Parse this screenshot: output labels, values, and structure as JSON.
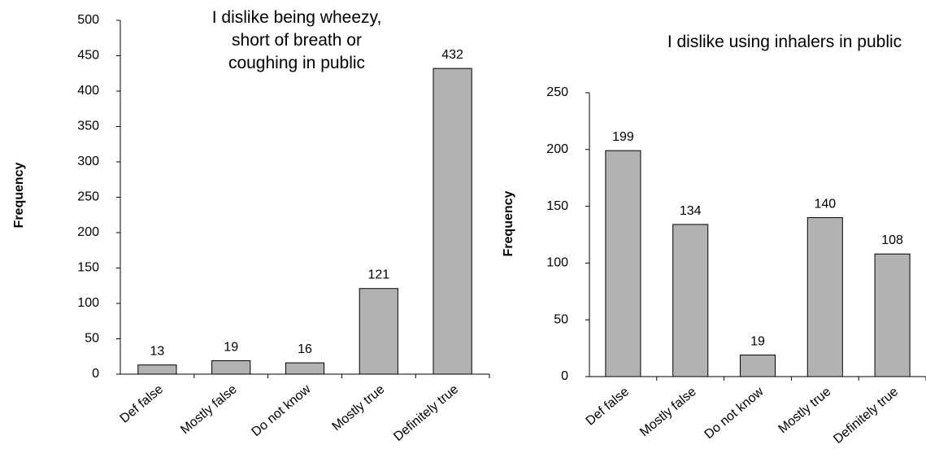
{
  "chart_data": [
    {
      "type": "bar",
      "title": "I dislike being wheezy, short of breath or coughing in public",
      "y_label": "Frequency",
      "categories": [
        "Def false",
        "Mostly false",
        "Do not know",
        "Mostly true",
        "Definitely true"
      ],
      "values": [
        13,
        19,
        16,
        121,
        432
      ],
      "color": "#b2b2b2",
      "ylim": [
        0,
        500
      ],
      "yticks": [
        0,
        50,
        100,
        150,
        200,
        250,
        300,
        350,
        400,
        450,
        500
      ],
      "grid": false
    },
    {
      "type": "bar",
      "title": "I dislike using inhalers in public",
      "y_label": "Frequency",
      "categories": [
        "Def false",
        "Mostly false",
        "Do not know",
        "Mostly true",
        "Definitely true"
      ],
      "values": [
        199,
        134,
        19,
        140,
        108
      ],
      "color": "#b2b2b2",
      "ylim": [
        0,
        250
      ],
      "yticks": [
        0,
        50,
        100,
        150,
        200,
        250
      ],
      "grid": false
    }
  ]
}
